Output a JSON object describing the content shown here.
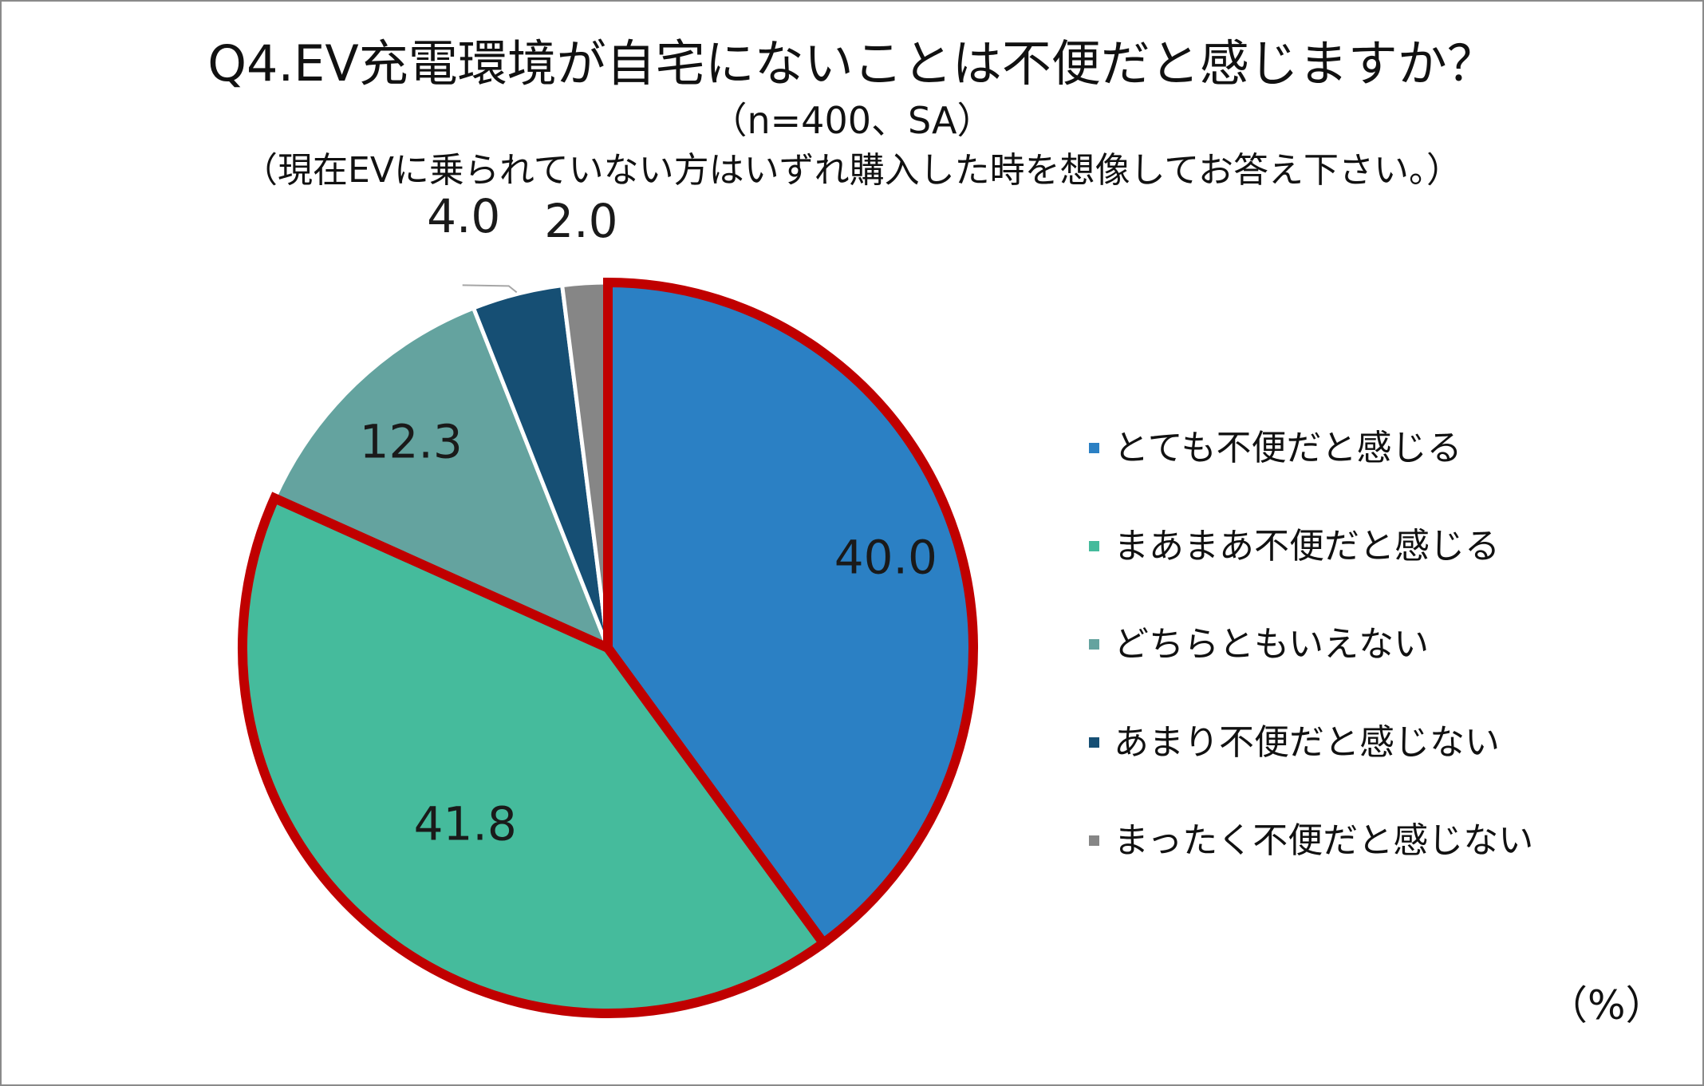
{
  "chart_data": {
    "type": "pie",
    "title": "Q4.EV充電環境が自宅にないことは不便だと感じますか？",
    "subtitle": "（n=400、SA）",
    "note": "（現在EVに乗られていない方はいずれ購入した時を想像してお答え下さい。）",
    "unit": "（%）",
    "legend_position": "right",
    "slices": [
      {
        "label": "とても不便だと感じる",
        "value": 40.0,
        "display": "40.0",
        "color": "#2b80c4",
        "highlighted": true
      },
      {
        "label": "まあまあ不便だと感じる",
        "value": 41.8,
        "display": "41.8",
        "color": "#45bb9c",
        "highlighted": true
      },
      {
        "label": "どちらともいえない",
        "value": 12.3,
        "display": "12.3",
        "color": "#64a39f",
        "highlighted": false
      },
      {
        "label": "あまり不便だと感じない",
        "value": 4.0,
        "display": "4.0",
        "color": "#164f74",
        "highlighted": false
      },
      {
        "label": "まったく不便だと感じない",
        "value": 2.0,
        "display": "2.0",
        "color": "#868686",
        "highlighted": false
      }
    ],
    "highlight_color": "#c00000"
  }
}
